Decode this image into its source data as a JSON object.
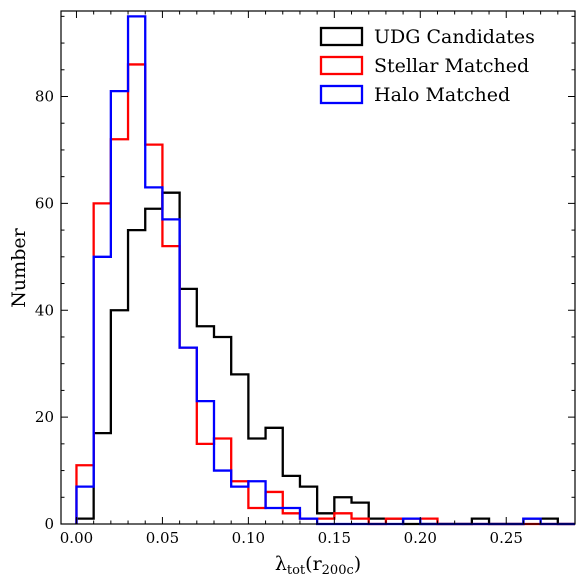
{
  "chart_data": {
    "type": "histogram",
    "xlabel": "λ",
    "xlabel_sub": "tot",
    "xlabel_suffix_open": "(r",
    "xlabel_suffix_sub": "200c",
    "xlabel_suffix_close": ")",
    "ylabel": "Number",
    "xlim": [
      -0.009,
      0.29
    ],
    "ylim": [
      0,
      96
    ],
    "xticks": [
      0.0,
      0.05,
      0.1,
      0.15,
      0.2,
      0.25
    ],
    "xtick_labels": [
      "0.00",
      "0.05",
      "0.10",
      "0.15",
      "0.20",
      "0.25"
    ],
    "yticks": [
      0,
      20,
      40,
      60,
      80
    ],
    "ytick_labels": [
      "0",
      "20",
      "40",
      "60",
      "80"
    ],
    "bin_start": 0.0,
    "bin_width": 0.01,
    "legend_position": "top-right",
    "series": [
      {
        "name": "UDG Candidates",
        "color": "#000000",
        "counts": [
          1,
          17,
          40,
          55,
          59,
          62,
          44,
          37,
          35,
          28,
          16,
          18,
          9,
          7,
          2,
          5,
          4,
          1,
          1,
          0,
          0,
          0,
          0,
          1,
          0,
          0,
          1,
          1,
          0
        ]
      },
      {
        "name": "Stellar Matched",
        "color": "#ff0000",
        "counts": [
          11,
          60,
          72,
          86,
          71,
          52,
          33,
          15,
          16,
          8,
          3,
          6,
          2,
          1,
          1,
          2,
          1,
          0,
          1,
          1,
          1,
          0,
          0,
          0,
          0,
          0,
          0,
          0,
          0
        ]
      },
      {
        "name": "Halo Matched",
        "color": "#0000ff",
        "counts": [
          7,
          50,
          81,
          95,
          63,
          57,
          33,
          23,
          10,
          7,
          8,
          3,
          3,
          1,
          0,
          0,
          0,
          0,
          0,
          1,
          0,
          0,
          0,
          0,
          0,
          0,
          1,
          0,
          0
        ]
      }
    ]
  }
}
